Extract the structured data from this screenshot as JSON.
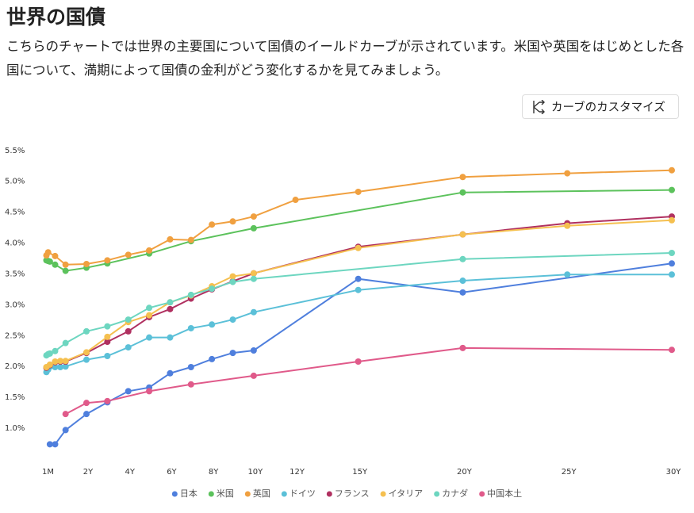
{
  "chart_data": {
    "type": "line",
    "title": "世界の国債",
    "subtitle": "こちらのチャートでは世界の主要国について国債のイールドカーブが示されています。米国や英国をはじめとした各国について、満期によって国債の金利がどう変化するかを見てみましょう。",
    "button": "カーブのカスタマイズ",
    "xlim": [
      0,
      30
    ],
    "ylim": [
      0.5,
      5.6
    ],
    "xticks": [
      {
        "value": 0.0833,
        "label": "1M"
      },
      {
        "value": 2,
        "label": "2Y"
      },
      {
        "value": 4,
        "label": "4Y"
      },
      {
        "value": 6,
        "label": "6Y"
      },
      {
        "value": 8,
        "label": "8Y"
      },
      {
        "value": 10,
        "label": "10Y"
      },
      {
        "value": 12,
        "label": "12Y"
      },
      {
        "value": 15,
        "label": "15Y"
      },
      {
        "value": 20,
        "label": "20Y"
      },
      {
        "value": 25,
        "label": "25Y"
      },
      {
        "value": 30,
        "label": "30Y"
      }
    ],
    "yticks": [
      {
        "value": 1.0,
        "label": "1.0%"
      },
      {
        "value": 1.5,
        "label": "1.5%"
      },
      {
        "value": 2.0,
        "label": "2.0%"
      },
      {
        "value": 2.5,
        "label": "2.5%"
      },
      {
        "value": 3.0,
        "label": "3.0%"
      },
      {
        "value": 3.5,
        "label": "3.5%"
      },
      {
        "value": 4.0,
        "label": "4.0%"
      },
      {
        "value": 4.5,
        "label": "4.5%"
      },
      {
        "value": 5.0,
        "label": "5.0%"
      },
      {
        "value": 5.5,
        "label": "5.5%"
      }
    ],
    "series": [
      {
        "name": "日本",
        "color": "#4f7fdd",
        "x": [
          0.25,
          0.5,
          1,
          2,
          3,
          4,
          5,
          6,
          7,
          8,
          9,
          10,
          15,
          20,
          30
        ],
        "values": [
          0.74,
          0.74,
          0.97,
          1.23,
          1.42,
          1.6,
          1.66,
          1.89,
          1.99,
          2.12,
          2.22,
          2.26,
          3.42,
          3.2,
          3.67
        ]
      },
      {
        "name": "米国",
        "color": "#5cc25c",
        "x": [
          0.0833,
          0.1667,
          0.25,
          0.5,
          1,
          2,
          3,
          5,
          7,
          10,
          20,
          30
        ],
        "values": [
          3.72,
          3.71,
          3.7,
          3.65,
          3.55,
          3.6,
          3.67,
          3.83,
          4.03,
          4.24,
          4.82,
          4.86
        ]
      },
      {
        "name": "英国",
        "color": "#f0a040",
        "x": [
          0.0833,
          0.1667,
          0.5,
          1,
          2,
          3,
          4,
          5,
          6,
          7,
          8,
          9,
          10,
          12,
          15,
          20,
          25,
          30
        ],
        "values": [
          3.8,
          3.85,
          3.79,
          3.65,
          3.66,
          3.72,
          3.81,
          3.88,
          4.06,
          4.05,
          4.3,
          4.35,
          4.43,
          4.7,
          4.83,
          5.07,
          5.13,
          5.18
        ]
      },
      {
        "name": "ドイツ",
        "color": "#5bc0d8",
        "x": [
          0.0833,
          0.1667,
          0.5,
          0.75,
          1,
          2,
          3,
          4,
          5,
          6,
          7,
          8,
          9,
          10,
          15,
          20,
          25,
          30
        ],
        "values": [
          1.91,
          1.95,
          1.99,
          1.99,
          2.0,
          2.11,
          2.17,
          2.31,
          2.47,
          2.47,
          2.62,
          2.68,
          2.76,
          2.88,
          3.24,
          3.39,
          3.49,
          3.49
        ]
      },
      {
        "name": "フランス",
        "color": "#b03060",
        "x": [
          0.0833,
          0.25,
          0.5,
          0.75,
          1,
          2,
          3,
          4,
          5,
          6,
          7,
          8,
          9,
          10,
          15,
          20,
          25,
          30
        ],
        "values": [
          1.98,
          2.02,
          2.07,
          2.08,
          2.08,
          2.22,
          2.4,
          2.57,
          2.8,
          2.93,
          3.1,
          3.25,
          3.38,
          3.51,
          3.94,
          4.14,
          4.32,
          4.43
        ]
      },
      {
        "name": "イタリア",
        "color": "#f5c050",
        "x": [
          0.0833,
          0.25,
          0.5,
          0.75,
          1,
          2,
          3,
          4,
          5,
          6,
          7,
          8,
          9,
          10,
          15,
          20,
          25,
          30
        ],
        "values": [
          1.99,
          2.03,
          2.08,
          2.09,
          2.09,
          2.23,
          2.48,
          2.72,
          2.83,
          3.04,
          3.15,
          3.3,
          3.46,
          3.51,
          3.92,
          4.14,
          4.28,
          4.37
        ]
      },
      {
        "name": "カナダ",
        "color": "#6dd6c0",
        "x": [
          0.0833,
          0.1667,
          0.25,
          0.5,
          1,
          2,
          3,
          4,
          5,
          6,
          7,
          8,
          9,
          10,
          20,
          30
        ],
        "values": [
          2.18,
          2.2,
          2.21,
          2.25,
          2.38,
          2.57,
          2.65,
          2.76,
          2.95,
          3.04,
          3.16,
          3.26,
          3.37,
          3.42,
          3.74,
          3.84
        ]
      },
      {
        "name": "中国本土",
        "color": "#e05a8a",
        "x": [
          1,
          2,
          3,
          5,
          7,
          10,
          15,
          20,
          30
        ],
        "values": [
          1.23,
          1.41,
          1.44,
          1.6,
          1.71,
          1.85,
          2.08,
          2.3,
          2.27
        ]
      }
    ]
  }
}
